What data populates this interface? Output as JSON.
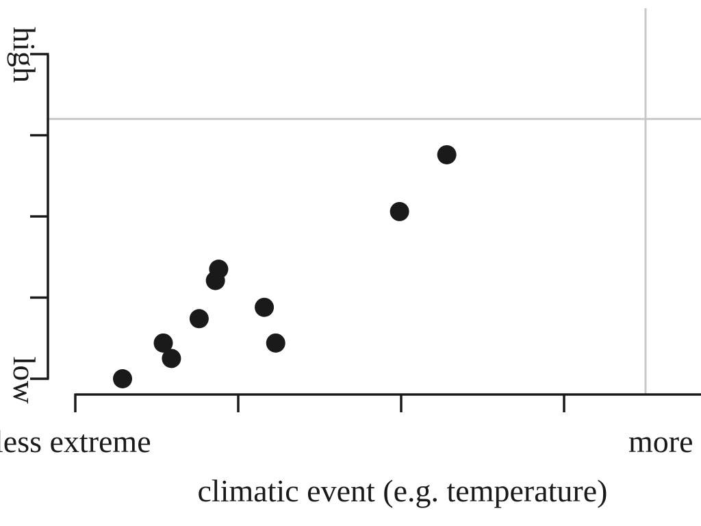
{
  "chart_data": {
    "type": "scatter",
    "title": "",
    "xlabel": "climatic event (e.g. temperature)",
    "ylabel": "",
    "x_axis_labels": {
      "low_end": "less extreme",
      "high_end": "more"
    },
    "y_axis_labels": {
      "low_end": "low",
      "high_end": "high"
    },
    "xlim": [
      0,
      3.5
    ],
    "ylim": [
      0,
      4
    ],
    "reference_lines": {
      "x": 3.5,
      "y": 3.2
    },
    "grid": false,
    "legend": "none",
    "colors": {
      "point": "#1a1a1a",
      "axis": "#1a1a1a",
      "reference_line": "#c8c8c8"
    },
    "x": [
      0.29,
      0.54,
      0.59,
      0.76,
      0.86,
      0.88,
      1.16,
      1.23,
      1.99,
      2.28
    ],
    "y": [
      0.0,
      0.44,
      0.25,
      0.74,
      1.21,
      1.35,
      0.88,
      0.44,
      2.06,
      2.76
    ]
  }
}
